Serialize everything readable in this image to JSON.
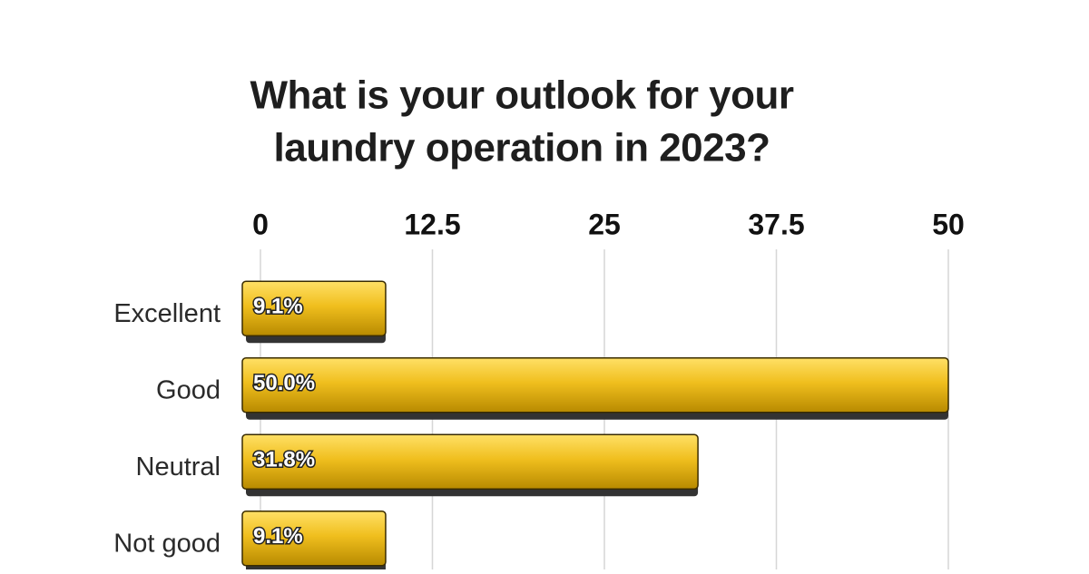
{
  "chart_data": {
    "type": "bar",
    "orientation": "horizontal",
    "title": [
      "What is your outlook for your",
      "laundry operation in 2023?"
    ],
    "categories": [
      "Excellent",
      "Good",
      "Neutral",
      "Not good"
    ],
    "values": [
      9.1,
      50.0,
      31.8,
      9.1
    ],
    "value_labels": [
      "9.1%",
      "50.0%",
      "31.8%",
      "9.1%"
    ],
    "color": "#f0bf1e",
    "xlim": [
      0,
      50
    ],
    "xticks": [
      0,
      12.5,
      25,
      37.5,
      50
    ],
    "grid": true
  }
}
